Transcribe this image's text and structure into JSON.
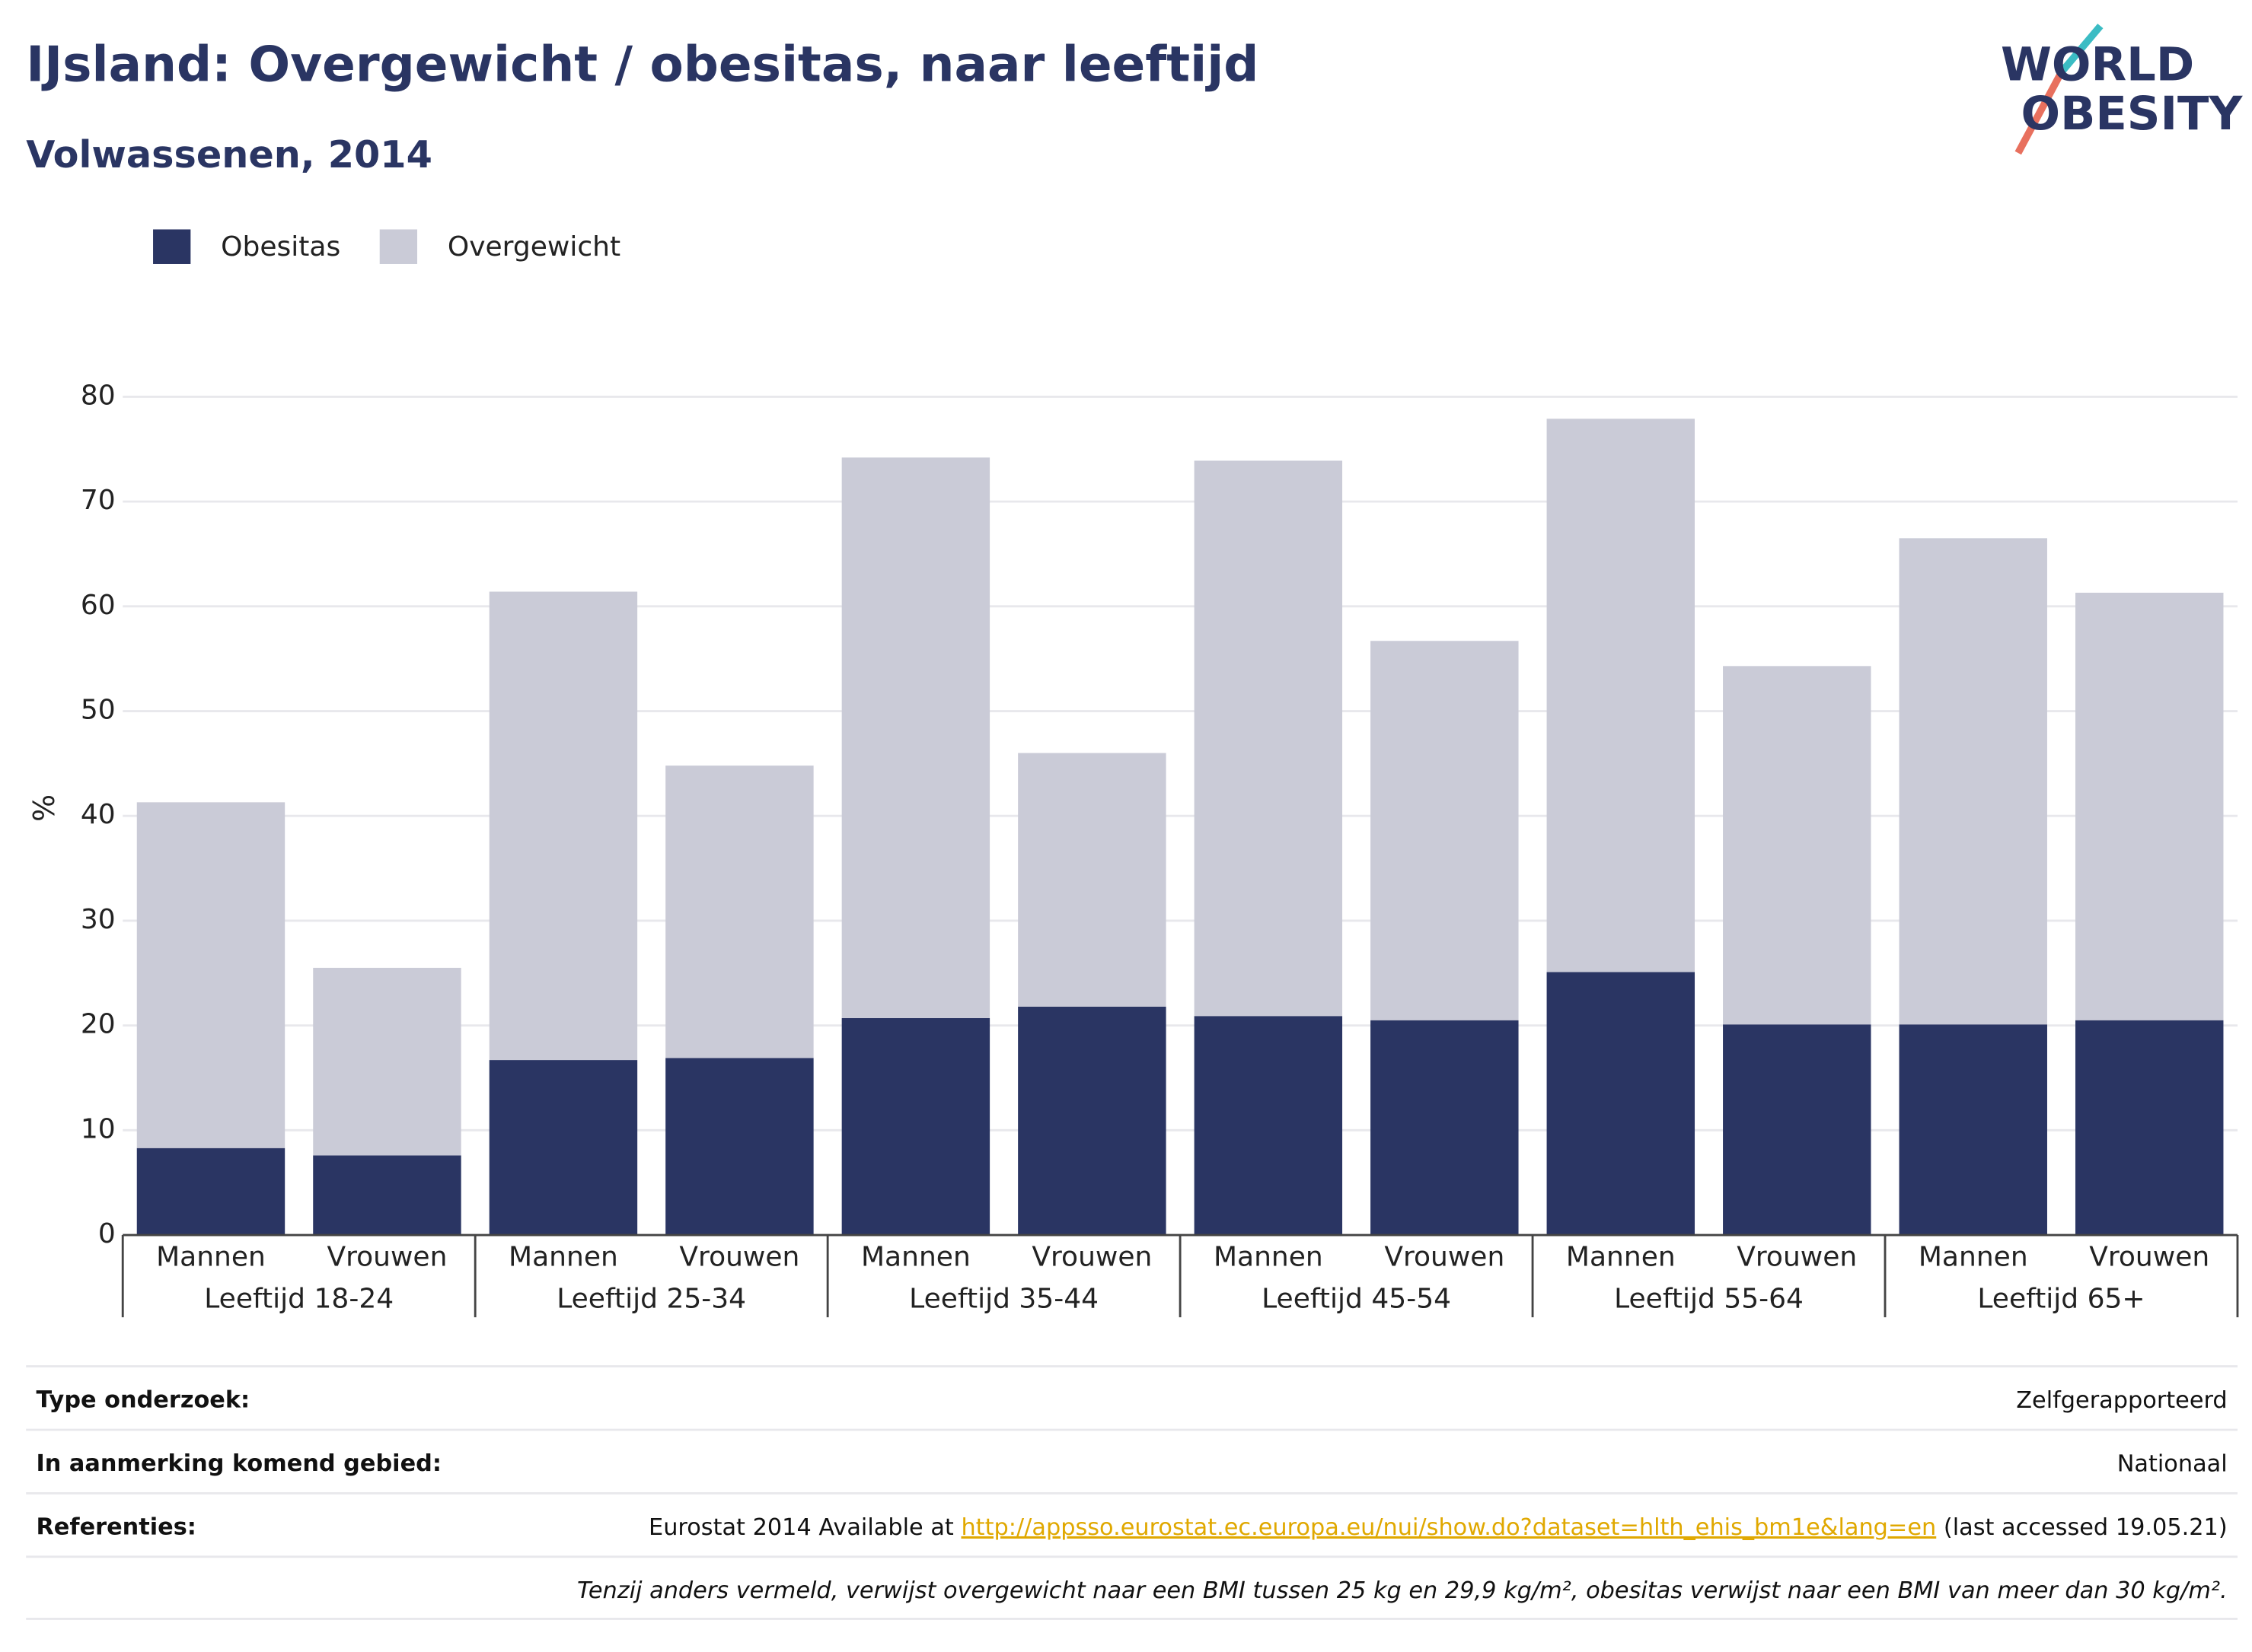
{
  "chart_data": {
    "type": "stacked_bar",
    "title": "IJsland: Overgewicht / obesitas, naar leeftijd",
    "subtitle": "Volwassenen, 2014",
    "y_label": "%",
    "categories": [
      "Mannen",
      "Vrouwen",
      "Mannen",
      "Vrouwen",
      "Mannen",
      "Vrouwen",
      "Mannen",
      "Vrouwen",
      "Mannen",
      "Vrouwen",
      "Mannen",
      "Vrouwen"
    ],
    "groups": [
      "Leeftijd 18-24",
      "Leeftijd 25-34",
      "Leeftijd 35-44",
      "Leeftijd 45-54",
      "Leeftijd 55-64",
      "Leeftijd 65+"
    ],
    "series": [
      {
        "name": "Obesitas",
        "color": "#2a3563",
        "values": [
          8.3,
          7.6,
          16.7,
          16.9,
          20.7,
          21.8,
          20.9,
          20.5,
          25.1,
          20.1,
          20.1,
          20.5
        ]
      },
      {
        "name": "Overgewicht",
        "color": "#cacbd7",
        "values": [
          33.0,
          17.9,
          44.7,
          27.9,
          53.5,
          24.2,
          53.0,
          36.2,
          52.8,
          34.2,
          46.4,
          40.8
        ]
      }
    ],
    "ylim": [
      0,
      80
    ],
    "yticks": [
      0,
      10,
      20,
      30,
      40,
      50,
      60,
      70,
      80
    ],
    "grid": true
  },
  "logo": [
    "WORLD",
    "OBESITY"
  ],
  "table": {
    "rows": [
      {
        "label": "Type onderzoek:",
        "value": "Zelfgerapporteerd"
      },
      {
        "label": "In aanmerking komend gebied:",
        "value": "Nationaal"
      },
      {
        "label": "Referenties:",
        "value": "Eurostat 2014 Available at ",
        "link": "http://appsso.eurostat.ec.europa.eu/nui/show.do?dataset=hlth_ehis_bm1e&lang=en",
        "suffix": " (last accessed 19.05.21)"
      }
    ],
    "note": "Tenzij anders vermeld, verwijst overgewicht naar een BMI tussen 25 kg en 29,9 kg/m², obesitas verwijst naar een BMI van meer dan 30 kg/m²."
  }
}
